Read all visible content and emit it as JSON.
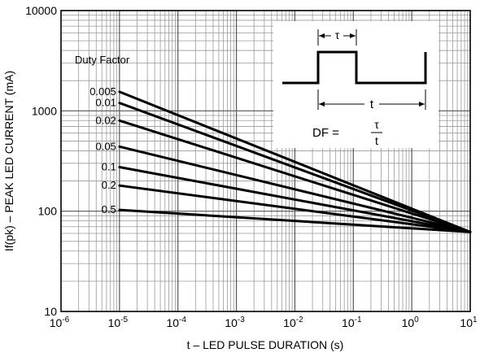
{
  "chart_data": {
    "type": "line",
    "title": "",
    "xlabel": "t – LED PULSE DURATION (s)",
    "ylabel": "If(pk) – PEAK LED CURRENT (mA)",
    "x_scale": "log",
    "y_scale": "log",
    "xlim": [
      1e-06,
      10
    ],
    "ylim": [
      10,
      10000
    ],
    "grid": true,
    "x_ticks": [
      {
        "base": "10",
        "exp": "-6"
      },
      {
        "base": "10",
        "exp": "-5"
      },
      {
        "base": "10",
        "exp": "-4"
      },
      {
        "base": "10",
        "exp": "-3"
      },
      {
        "base": "10",
        "exp": "-2"
      },
      {
        "base": "10",
        "exp": "-1"
      },
      {
        "base": "10",
        "exp": "0"
      },
      {
        "base": "10",
        "exp": "1"
      }
    ],
    "y_ticks": [
      "10000",
      "1000",
      "100",
      "10"
    ],
    "legend_title": "Duty Factor",
    "series": [
      {
        "name": "0.005",
        "x": [
          1e-05,
          10
        ],
        "y": [
          1550,
          62
        ]
      },
      {
        "name": "0.01",
        "x": [
          1e-05,
          10
        ],
        "y": [
          1200,
          62
        ]
      },
      {
        "name": "0.02",
        "x": [
          1e-05,
          10
        ],
        "y": [
          800,
          62
        ]
      },
      {
        "name": "0.05",
        "x": [
          1e-05,
          10
        ],
        "y": [
          440,
          62
        ]
      },
      {
        "name": "0.1",
        "x": [
          1e-05,
          10
        ],
        "y": [
          275,
          62
        ]
      },
      {
        "name": "0.2",
        "x": [
          1e-05,
          10
        ],
        "y": [
          180,
          62
        ]
      },
      {
        "name": "0.5",
        "x": [
          1e-05,
          10
        ],
        "y": [
          103,
          62
        ]
      }
    ],
    "inset": {
      "tau": "τ",
      "t": "t",
      "formula_lhs": "DF =",
      "formula_num": "τ",
      "formula_den": "t"
    }
  }
}
